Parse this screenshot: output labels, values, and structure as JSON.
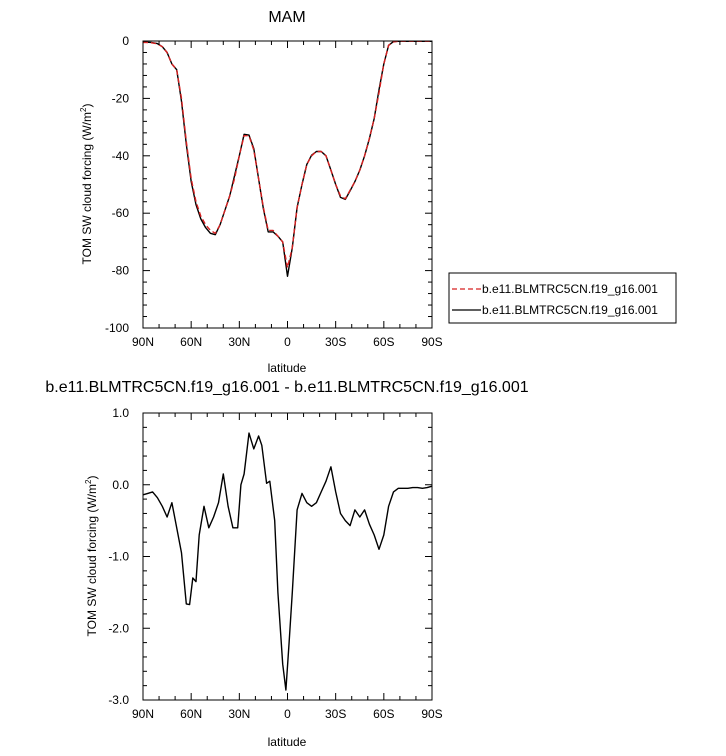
{
  "chart_data": [
    {
      "type": "line",
      "title": "MAM",
      "xlabel": "latitude",
      "ylabel": "TOM SW cloud forcing (W/m²)",
      "ylabel_main": "TOM SW cloud forcing (W/m",
      "ylabel_sup": "2",
      "ylabel_end": ")",
      "xlim": [
        90,
        -90
      ],
      "ylim": [
        -100,
        0
      ],
      "x_ticks": [
        90,
        60,
        30,
        0,
        -30,
        -60,
        -90
      ],
      "x_tick_labels": [
        "90N",
        "60N",
        "30N",
        "0",
        "30S",
        "60S",
        "90S"
      ],
      "y_ticks": [
        0,
        -20,
        -40,
        -60,
        -80,
        -100
      ],
      "y_tick_labels": [
        "0",
        "-20",
        "-40",
        "-60",
        "-80",
        "-100"
      ],
      "legend_position": "right, outside plot",
      "series": [
        {
          "name": "b.e11.BLMTRC5CN.f19_g16.001",
          "color": "#d62020",
          "style": "dashed",
          "x": [
            90,
            85,
            81,
            78,
            75,
            72,
            69,
            66,
            63,
            60,
            57,
            54,
            51,
            48,
            45,
            42,
            39,
            36,
            33,
            30,
            27,
            24,
            21,
            18,
            15,
            12,
            9,
            6,
            3,
            0,
            -3,
            -6,
            -9,
            -12,
            -15,
            -18,
            -21,
            -24,
            -27,
            -30,
            -33,
            -36,
            -39,
            -42,
            -45,
            -48,
            -51,
            -54,
            -57,
            -60,
            -63,
            -66,
            -69,
            -72,
            -75,
            -78,
            -81,
            -85,
            -90
          ],
          "y": [
            -0.5,
            -0.6,
            -1,
            -2,
            -4,
            -8,
            -10,
            -20,
            -35,
            -48,
            -56,
            -61,
            -64,
            -66,
            -67,
            -64,
            -59,
            -54,
            -48,
            -40,
            -33,
            -33,
            -38,
            -48,
            -58,
            -66,
            -66,
            -68,
            -70,
            -79,
            -72,
            -58,
            -50,
            -43,
            -40,
            -38.5,
            -38.5,
            -40,
            -45,
            -50,
            -54,
            -55,
            -52,
            -49,
            -45,
            -40,
            -34,
            -27,
            -18,
            -8,
            -1.5,
            -0.3,
            -0.1,
            -0.1,
            -0.1,
            -0.1,
            -0.1,
            -0.1,
            -0.1
          ]
        },
        {
          "name": "b.e11.BLMTRC5CN.f19_g16.001",
          "color": "#000000",
          "style": "solid",
          "x": [
            90,
            85,
            81,
            78,
            75,
            72,
            69,
            66,
            63,
            60,
            57,
            54,
            51,
            48,
            45,
            42,
            39,
            36,
            33,
            30,
            27,
            24,
            21,
            18,
            15,
            12,
            9,
            6,
            3,
            0,
            -3,
            -6,
            -9,
            -12,
            -15,
            -18,
            -21,
            -24,
            -27,
            -30,
            -33,
            -36,
            -39,
            -42,
            -45,
            -48,
            -51,
            -54,
            -57,
            -60,
            -63,
            -66,
            -69,
            -72,
            -75,
            -78,
            -81,
            -85,
            -90
          ],
          "y": [
            -0.4,
            -0.5,
            -0.9,
            -2,
            -4,
            -8,
            -10,
            -21,
            -36,
            -49,
            -57,
            -62,
            -65,
            -67,
            -67.5,
            -64,
            -59,
            -54,
            -47,
            -40,
            -32.5,
            -32.8,
            -37.5,
            -48,
            -58.5,
            -66.5,
            -66.5,
            -68,
            -70,
            -82,
            -72,
            -58,
            -50,
            -43,
            -39.8,
            -38.5,
            -38.5,
            -40,
            -45,
            -50,
            -54.5,
            -55.2,
            -52.2,
            -49,
            -45,
            -40,
            -34,
            -27,
            -17,
            -8,
            -1.5,
            -0.2,
            -0.1,
            -0.1,
            -0.1,
            -0.1,
            -0.1,
            -0.1,
            -0.1
          ]
        }
      ]
    },
    {
      "type": "line",
      "title": "b.e11.BLMTRC5CN.f19_g16.001 - b.e11.BLMTRC5CN.f19_g16.001",
      "xlabel": "latitude",
      "ylabel": "TOM SW cloud forcing (W/m²)",
      "ylabel_main": "TOM SW cloud forcing (W/m",
      "ylabel_sup": "2",
      "ylabel_end": ")",
      "xlim": [
        90,
        -90
      ],
      "ylim": [
        -3.0,
        1.0
      ],
      "x_ticks": [
        90,
        60,
        30,
        0,
        -30,
        -60,
        -90
      ],
      "x_tick_labels": [
        "90N",
        "60N",
        "30N",
        "0",
        "30S",
        "60S",
        "90S"
      ],
      "y_ticks": [
        1.0,
        0.0,
        -1.0,
        -2.0,
        -3.0
      ],
      "y_tick_labels": [
        "1.0",
        "0.0",
        "-1.0",
        "-2.0",
        "-3.0"
      ],
      "series": [
        {
          "name": "",
          "color": "#000000",
          "style": "solid",
          "x": [
            90,
            87,
            84,
            81,
            78,
            75,
            72,
            69,
            66,
            63,
            61,
            59,
            57,
            55,
            52,
            49,
            46,
            43,
            40,
            37,
            34,
            31,
            29,
            27,
            24,
            21,
            18,
            16,
            13,
            11,
            8,
            6,
            3,
            1,
            -1,
            -3,
            -6,
            -9,
            -12,
            -15,
            -18,
            -21,
            -24,
            -27,
            -30,
            -33,
            -36,
            -39,
            -42,
            -45,
            -48,
            -51,
            -54,
            -57,
            -60,
            -63,
            -66,
            -69,
            -72,
            -75,
            -78,
            -81,
            -84,
            -87,
            -90
          ],
          "y": [
            -0.14,
            -0.12,
            -0.1,
            -0.18,
            -0.3,
            -0.45,
            -0.25,
            -0.6,
            -0.95,
            -1.66,
            -1.67,
            -1.3,
            -1.35,
            -0.7,
            -0.3,
            -0.6,
            -0.45,
            -0.25,
            0.15,
            -0.3,
            -0.6,
            -0.6,
            0.0,
            0.15,
            0.72,
            0.5,
            0.68,
            0.55,
            0.02,
            0.05,
            -0.5,
            -1.5,
            -2.5,
            -2.86,
            -2.2,
            -1.5,
            -0.35,
            -0.12,
            -0.25,
            -0.3,
            -0.25,
            -0.1,
            0.05,
            0.25,
            -0.1,
            -0.4,
            -0.5,
            -0.57,
            -0.35,
            -0.45,
            -0.35,
            -0.55,
            -0.7,
            -0.9,
            -0.7,
            -0.3,
            -0.1,
            -0.05,
            -0.05,
            -0.05,
            -0.04,
            -0.04,
            -0.05,
            -0.04,
            -0.02
          ]
        }
      ]
    }
  ]
}
